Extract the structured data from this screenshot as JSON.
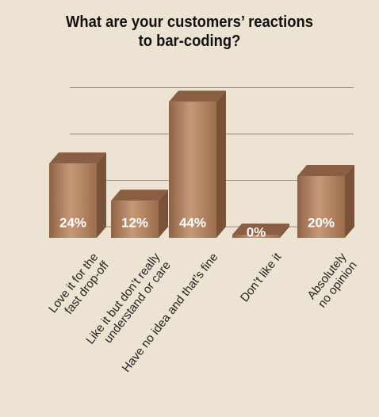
{
  "chart_data": {
    "type": "bar3d",
    "title": "What are your customers’ reactions\nto bar-coding?",
    "categories": [
      "Love it for the\nfast drop-off",
      "Like it but don’t really\nunderstand or care",
      "Have no idea and that’s fine",
      "Don’t like it",
      "Absolutely no opinion"
    ],
    "values": [
      24,
      12,
      44,
      0,
      20
    ],
    "value_labels": [
      "24%",
      "12%",
      "44%",
      "0%",
      "20%"
    ],
    "color": "#a97a58",
    "ylim": [
      0,
      50
    ],
    "yticks": [
      0,
      15,
      30,
      45
    ],
    "grid": true
  }
}
